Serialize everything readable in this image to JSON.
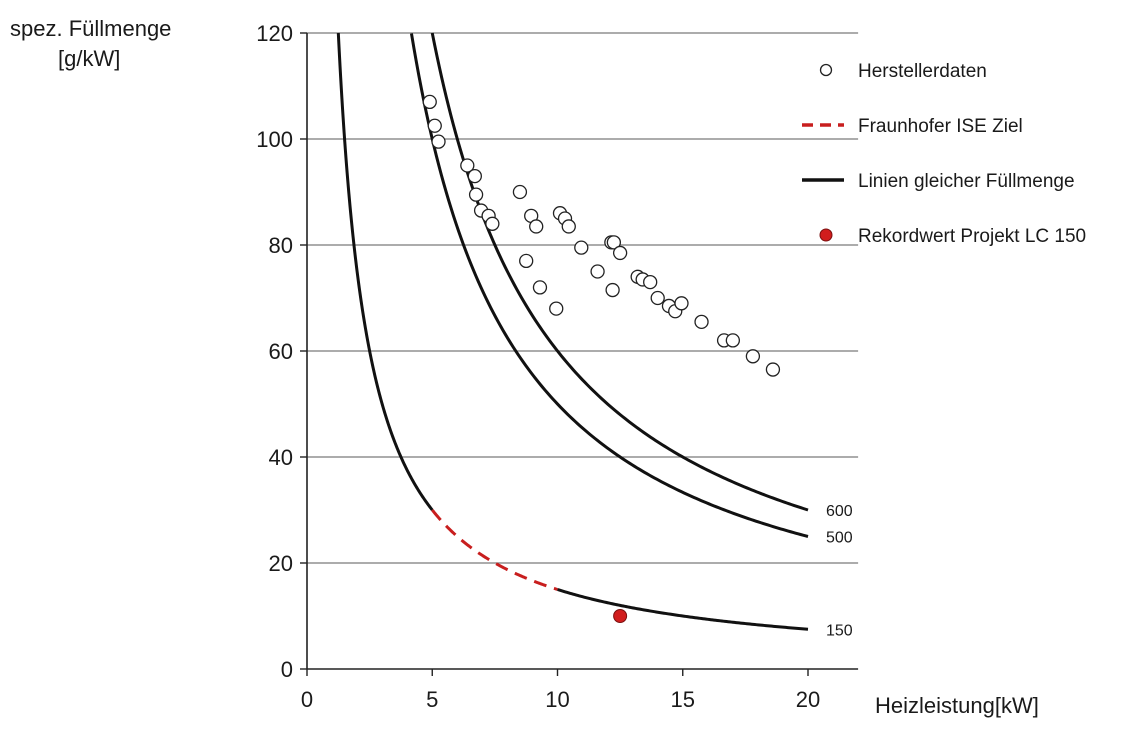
{
  "chart_data": {
    "type": "scatter",
    "title": "",
    "ylabel_lines": [
      "spez. Füllmenge",
      "[g/kW]"
    ],
    "xlabel": "Heizleistung[kW]",
    "xlim": [
      0,
      22
    ],
    "ylim": [
      0,
      120
    ],
    "x_ticks": [
      0,
      5,
      10,
      15,
      20
    ],
    "y_ticks": [
      0,
      20,
      40,
      60,
      80,
      100,
      120
    ],
    "grid": "horizontal",
    "legend_position": "top-right",
    "legend": [
      {
        "label": "Herstellerdaten",
        "marker": "open-circle"
      },
      {
        "label": "Fraunhofer ISE Ziel",
        "marker": "dashed-red-line"
      },
      {
        "label": "Linien gleicher Füllmenge",
        "marker": "solid-black-line"
      },
      {
        "label": "Rekordwert Projekt LC 150",
        "marker": "filled-red-circle"
      }
    ],
    "colors": {
      "curve": "#111111",
      "target": "#c81e1e",
      "record": "#d11d1d",
      "grid": "#7a7a7a"
    },
    "series": [
      {
        "name": "Herstellerdaten",
        "kind": "open-circle",
        "points": [
          [
            4.9,
            107
          ],
          [
            5.1,
            102.5
          ],
          [
            5.25,
            99.5
          ],
          [
            6.4,
            95
          ],
          [
            6.7,
            93
          ],
          [
            6.75,
            89.5
          ],
          [
            6.95,
            86.5
          ],
          [
            7.25,
            85.5
          ],
          [
            7.4,
            84
          ],
          [
            8.5,
            90
          ],
          [
            8.95,
            85.5
          ],
          [
            9.15,
            83.5
          ],
          [
            9.3,
            72
          ],
          [
            8.75,
            77
          ],
          [
            9.95,
            68
          ],
          [
            10.1,
            86
          ],
          [
            10.3,
            85
          ],
          [
            10.45,
            83.5
          ],
          [
            10.95,
            79.5
          ],
          [
            11.6,
            75
          ],
          [
            12.15,
            80.5
          ],
          [
            12.25,
            80.5
          ],
          [
            12.5,
            78.5
          ],
          [
            12.2,
            71.5
          ],
          [
            13.2,
            74
          ],
          [
            13.4,
            73.5
          ],
          [
            13.7,
            73
          ],
          [
            14.0,
            70
          ],
          [
            14.45,
            68.5
          ],
          [
            14.7,
            67.5
          ],
          [
            14.95,
            69
          ],
          [
            15.75,
            65.5
          ],
          [
            16.65,
            62
          ],
          [
            17.0,
            62
          ],
          [
            17.8,
            59
          ],
          [
            18.6,
            56.5
          ]
        ]
      },
      {
        "name": "Rekordwert Projekt LC 150",
        "kind": "filled-circle",
        "points": [
          [
            12.5,
            10
          ]
        ]
      }
    ],
    "curves": [
      {
        "label": "600",
        "charge_g": 600,
        "x_start": 5.0,
        "x_end": 20
      },
      {
        "label": "500",
        "charge_g": 500,
        "x_start": 4.17,
        "x_end": 20
      },
      {
        "label": "150",
        "charge_g": 150,
        "x_start": 1.25,
        "x_end": 20,
        "dashed_from": 5.0,
        "dashed_to": 10.0
      }
    ]
  }
}
